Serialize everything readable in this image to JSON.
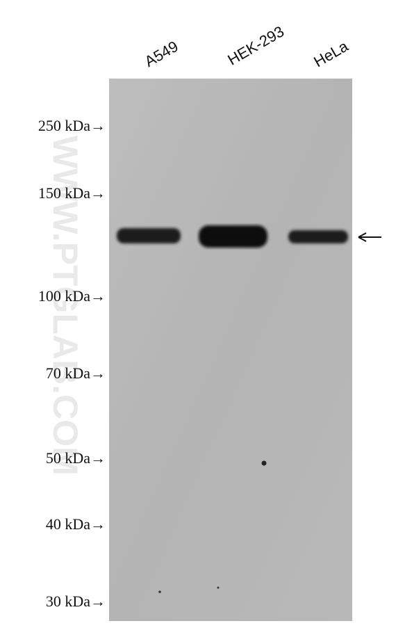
{
  "lanes": [
    "A549",
    "HEK-293",
    "HeLa"
  ],
  "markers": [
    "250 kDa→",
    "150 kDa→",
    "100 kDa→",
    "70 kDa→",
    "50 kDa→",
    "40 kDa→",
    "30 kDa→"
  ],
  "watermark": "WWW.PTGLAB.COM"
}
